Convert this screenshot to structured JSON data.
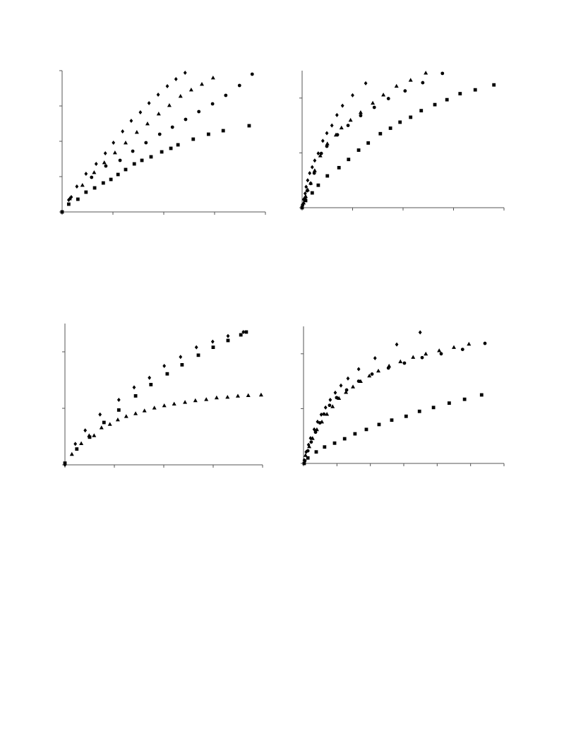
{
  "chart_data": [
    {
      "type": "scatter",
      "xlim": [
        0,
        4
      ],
      "ylim": [
        0,
        4
      ],
      "xticks": [
        0,
        1,
        2,
        3,
        4
      ],
      "yticks": [
        0,
        1,
        2,
        3,
        4
      ],
      "series": [
        {
          "marker": "diamond",
          "color": "#000000",
          "x": [
            0,
            0.13,
            0.18,
            0.29,
            0.47,
            0.67,
            0.85,
            1.01,
            1.19,
            1.36,
            1.54,
            1.71,
            1.89,
            2.07,
            2.24,
            2.42
          ],
          "values": [
            0,
            0.34,
            0.42,
            0.72,
            1.08,
            1.36,
            1.66,
            1.96,
            2.28,
            2.58,
            2.82,
            3.08,
            3.32,
            3.56,
            3.76,
            3.94
          ]
        },
        {
          "marker": "square",
          "color": "#000000",
          "x": [
            0,
            0.13,
            0.31,
            0.47,
            0.64,
            0.81,
            0.96,
            1.1,
            1.25,
            1.42,
            1.57,
            1.75,
            1.96,
            2.14,
            2.28,
            2.58,
            2.88,
            3.17,
            3.68
          ],
          "values": [
            0,
            0.22,
            0.36,
            0.56,
            0.68,
            0.82,
            0.92,
            1.06,
            1.2,
            1.36,
            1.46,
            1.56,
            1.7,
            1.8,
            1.9,
            2.06,
            2.2,
            2.3,
            2.44
          ]
        },
        {
          "marker": "triangle",
          "color": "#000000",
          "x": [
            0.15,
            0.4,
            0.63,
            0.83,
            1.04,
            1.25,
            1.47,
            1.68,
            1.9,
            2.11,
            2.33,
            2.54,
            2.75,
            2.97
          ],
          "values": [
            0.38,
            0.76,
            1.12,
            1.4,
            1.68,
            1.96,
            2.26,
            2.5,
            2.78,
            3.02,
            3.28,
            3.46,
            3.62,
            3.8
          ]
        },
        {
          "marker": "circle",
          "color": "#000000",
          "x": [
            0.58,
            0.86,
            1.14,
            1.39,
            1.65,
            1.92,
            2.17,
            2.43,
            2.69,
            2.96,
            3.22,
            3.49,
            3.74
          ],
          "values": [
            0.98,
            1.3,
            1.46,
            1.72,
            1.96,
            2.2,
            2.4,
            2.62,
            2.84,
            3.06,
            3.3,
            3.58,
            3.9
          ]
        }
      ]
    },
    {
      "type": "scatter",
      "xlim": [
        0,
        4
      ],
      "ylim": [
        0,
        2.5
      ],
      "xticks": [
        0,
        1,
        2,
        3,
        4
      ],
      "yticks": [
        0,
        1,
        2
      ],
      "series": [
        {
          "marker": "diamond",
          "color": "#000000",
          "x": [
            0.03,
            0.06,
            0.08,
            0.11,
            0.15,
            0.2,
            0.25,
            0.32,
            0.41,
            0.49,
            0.59,
            0.69,
            0.8,
            1.0,
            1.26
          ],
          "values": [
            0.15,
            0.26,
            0.38,
            0.5,
            0.63,
            0.74,
            0.86,
            0.99,
            1.22,
            1.36,
            1.5,
            1.69,
            1.86,
            2.05,
            2.27
          ]
        },
        {
          "marker": "square",
          "color": "#000000",
          "x": [
            0,
            0.07,
            0.2,
            0.32,
            0.5,
            0.73,
            0.92,
            1.12,
            1.31,
            1.55,
            1.75,
            1.94,
            2.15,
            2.36,
            2.63,
            2.87,
            3.13,
            3.43,
            3.8
          ],
          "values": [
            0,
            0.13,
            0.27,
            0.41,
            0.58,
            0.73,
            0.88,
            1.05,
            1.18,
            1.35,
            1.45,
            1.56,
            1.65,
            1.77,
            1.88,
            1.97,
            2.08,
            2.15,
            2.24
          ]
        },
        {
          "marker": "triangle",
          "color": "#000000",
          "x": [
            0.03,
            0.07,
            0.11,
            0.17,
            0.25,
            0.36,
            0.5,
            0.67,
            0.78,
            0.96,
            1.16,
            1.4,
            1.61,
            1.87,
            2.15,
            2.45
          ],
          "values": [
            0.09,
            0.21,
            0.33,
            0.45,
            0.68,
            0.95,
            1.17,
            1.33,
            1.46,
            1.6,
            1.74,
            1.91,
            2.06,
            2.22,
            2.33,
            2.46
          ]
        },
        {
          "marker": "circle",
          "color": "#000000",
          "x": [
            0.01,
            0.06,
            0.1,
            0.17,
            0.24,
            0.38,
            0.49,
            0.7,
            0.91,
            1.16,
            1.43,
            1.71,
            2.04,
            2.39,
            2.78
          ],
          "values": [
            0.05,
            0.18,
            0.31,
            0.44,
            0.63,
            0.99,
            1.12,
            1.33,
            1.5,
            1.68,
            1.83,
            1.99,
            2.13,
            2.28,
            2.45
          ]
        }
      ]
    },
    {
      "type": "scatter",
      "xlim": [
        0,
        4
      ],
      "ylim": [
        0,
        2.5
      ],
      "xticks": [
        0,
        1,
        2,
        3,
        4
      ],
      "yticks": [
        0,
        1,
        2
      ],
      "series": [
        {
          "marker": "diamond",
          "color": "#000000",
          "x": [
            0,
            0.21,
            0.41,
            0.71,
            1.09,
            1.4,
            1.71,
            2.01,
            2.34,
            2.66,
            2.99,
            3.3,
            3.61
          ],
          "values": [
            0,
            0.37,
            0.61,
            0.89,
            1.15,
            1.37,
            1.54,
            1.75,
            1.91,
            2.08,
            2.18,
            2.28,
            2.35
          ]
        },
        {
          "marker": "square",
          "color": "#000000",
          "x": [
            0,
            0.24,
            0.5,
            0.79,
            1.09,
            1.43,
            1.74,
            2.07,
            2.37,
            2.7,
            3.0,
            3.3,
            3.56,
            3.67
          ],
          "values": [
            0.03,
            0.28,
            0.49,
            0.75,
            0.97,
            1.22,
            1.42,
            1.61,
            1.77,
            1.94,
            2.08,
            2.2,
            2.3,
            2.35
          ]
        },
        {
          "marker": "triangle",
          "color": "#000000",
          "x": [
            0.14,
            0.33,
            0.49,
            0.59,
            0.74,
            0.91,
            1.07,
            1.24,
            1.43,
            1.61,
            1.81,
            2.01,
            2.21,
            2.43,
            2.64,
            2.86,
            3.07,
            3.29,
            3.5,
            3.71,
            3.97
          ],
          "values": [
            0.19,
            0.38,
            0.52,
            0.52,
            0.66,
            0.72,
            0.8,
            0.86,
            0.91,
            0.96,
            1.01,
            1.05,
            1.08,
            1.11,
            1.14,
            1.16,
            1.19,
            1.2,
            1.22,
            1.23,
            1.24
          ]
        }
      ]
    },
    {
      "type": "scatter",
      "xlim": [
        0,
        6
      ],
      "ylim": [
        0,
        2.5
      ],
      "xticks": [
        0,
        1,
        2,
        3,
        4,
        5,
        6
      ],
      "yticks": [
        0,
        1,
        2
      ],
      "series": [
        {
          "marker": "diamond",
          "color": "#000000",
          "x": [
            0.02,
            0.08,
            0.15,
            0.21,
            0.32,
            0.42,
            0.53,
            0.66,
            0.8,
            0.95,
            1.12,
            1.33,
            1.65,
            2.14,
            2.79,
            3.49
          ],
          "values": [
            0.06,
            0.21,
            0.34,
            0.46,
            0.62,
            0.76,
            0.89,
            1.02,
            1.16,
            1.29,
            1.42,
            1.55,
            1.72,
            1.92,
            2.17,
            2.39
          ]
        },
        {
          "marker": "square",
          "color": "#000000",
          "x": [
            0.02,
            0.13,
            0.38,
            0.63,
            0.93,
            1.23,
            1.54,
            1.88,
            2.26,
            2.64,
            3.07,
            3.47,
            3.89,
            4.36,
            4.82,
            5.33
          ],
          "values": [
            0,
            0.1,
            0.21,
            0.3,
            0.37,
            0.45,
            0.54,
            0.62,
            0.71,
            0.79,
            0.86,
            0.95,
            1.02,
            1.1,
            1.17,
            1.25
          ]
        },
        {
          "marker": "triangle",
          "color": "#000000",
          "x": [
            0.06,
            0.17,
            0.27,
            0.4,
            0.55,
            0.7,
            0.87,
            1.06,
            1.27,
            1.48,
            1.71,
            1.97,
            2.24,
            2.56,
            2.9,
            3.28,
            3.66,
            4.06,
            4.5,
            4.95
          ],
          "values": [
            0.15,
            0.31,
            0.46,
            0.62,
            0.76,
            0.9,
            1.04,
            1.19,
            1.3,
            1.4,
            1.5,
            1.6,
            1.69,
            1.78,
            1.86,
            1.94,
            2.0,
            2.06,
            2.12,
            2.18
          ]
        },
        {
          "marker": "circle",
          "color": "#000000",
          "x": [
            0.04,
            0.13,
            0.23,
            0.36,
            0.49,
            0.61,
            0.78,
            0.99,
            1.29,
            1.65,
            2.05,
            2.54,
            3.02,
            3.55,
            4.12,
            4.76,
            5.43
          ],
          "values": [
            0.05,
            0.23,
            0.39,
            0.57,
            0.74,
            0.9,
            1.06,
            1.2,
            1.34,
            1.5,
            1.63,
            1.74,
            1.83,
            1.93,
            2.0,
            2.08,
            2.19
          ]
        }
      ]
    }
  ]
}
